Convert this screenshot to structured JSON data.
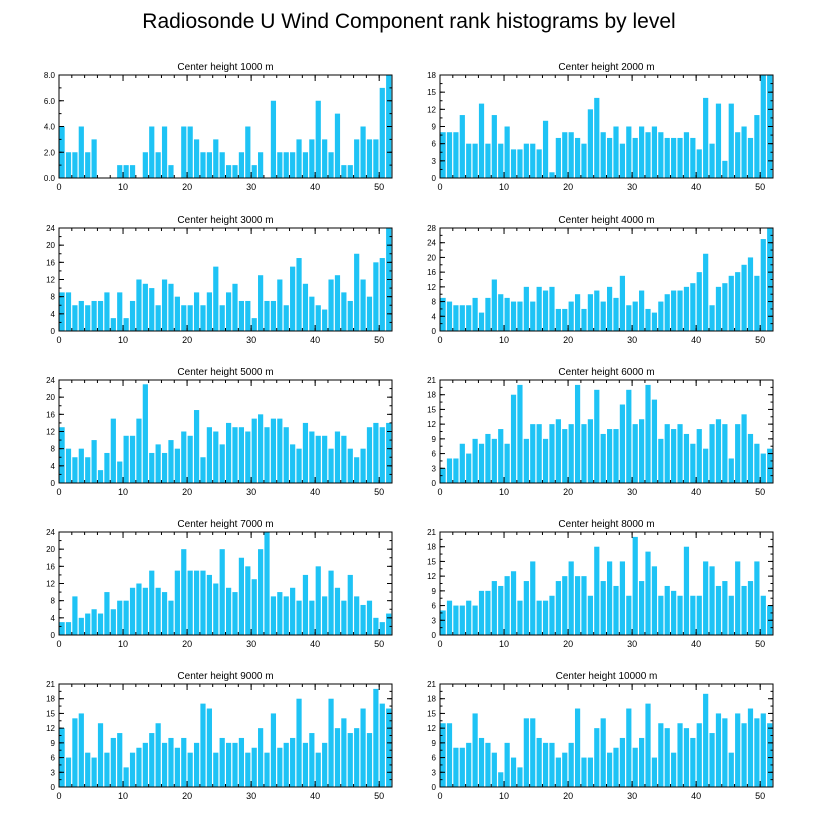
{
  "title": "Radiosonde U Wind Component rank histograms by level",
  "bar_color": "#1ec3f5",
  "chart_data": [
    {
      "type": "bar",
      "title": "Center height 1000 m",
      "ylim": [
        0,
        8
      ],
      "yticks": [
        0.0,
        2.0,
        4.0,
        6.0,
        8.0
      ],
      "yticks_labels": [
        "0.0",
        "2.0",
        "4.0",
        "6.0",
        "8.0"
      ],
      "xticks": [
        0,
        10,
        20,
        30,
        40,
        50
      ],
      "values": [
        4,
        2,
        2,
        4,
        2,
        3,
        0,
        0,
        0,
        1,
        1,
        1,
        0,
        2,
        4,
        2,
        4,
        1,
        0,
        4,
        4,
        3,
        2,
        2,
        3,
        2,
        1,
        1,
        2,
        4,
        1,
        2,
        0,
        6,
        2,
        2,
        2,
        3,
        2,
        3,
        6,
        3,
        2,
        5,
        1,
        1,
        3,
        4,
        3,
        3,
        7,
        8
      ]
    },
    {
      "type": "bar",
      "title": "Center height 2000 m",
      "ylim": [
        0,
        18
      ],
      "yticks": [
        0,
        3,
        6,
        9,
        12,
        15,
        18
      ],
      "xticks": [
        0,
        10,
        20,
        30,
        40,
        50
      ],
      "values": [
        8,
        8,
        8,
        11,
        6,
        6,
        13,
        6,
        11,
        6,
        9,
        5,
        5,
        6,
        6,
        5,
        10,
        1,
        7,
        8,
        8,
        7,
        6,
        12,
        14,
        8,
        7,
        9,
        6,
        9,
        7,
        9,
        8,
        9,
        8,
        7,
        7,
        7,
        8,
        7,
        5,
        14,
        6,
        13,
        3,
        13,
        8,
        9,
        7,
        11,
        18,
        18
      ]
    },
    {
      "type": "bar",
      "title": "Center height 3000 m",
      "ylim": [
        0,
        24
      ],
      "yticks": [
        0,
        4,
        8,
        12,
        16,
        20,
        24
      ],
      "xticks": [
        0,
        10,
        20,
        30,
        40,
        50
      ],
      "values": [
        9,
        9,
        6,
        7,
        6,
        7,
        7,
        9,
        3,
        9,
        3,
        7,
        12,
        11,
        10,
        6,
        12,
        11,
        8,
        6,
        6,
        9,
        6,
        9,
        15,
        6,
        9,
        11,
        7,
        7,
        3,
        13,
        7,
        7,
        12,
        6,
        15,
        17,
        11,
        8,
        6,
        5,
        12,
        13,
        9,
        7,
        18,
        12,
        8,
        16,
        17,
        24
      ]
    },
    {
      "type": "bar",
      "title": "Center height 4000 m",
      "ylim": [
        0,
        28
      ],
      "yticks": [
        0,
        4,
        8,
        12,
        16,
        20,
        24,
        28
      ],
      "xticks": [
        0,
        10,
        20,
        30,
        40,
        50
      ],
      "values": [
        9,
        8,
        7,
        7,
        7,
        9,
        5,
        9,
        14,
        10,
        9,
        8,
        8,
        12,
        8,
        12,
        11,
        12,
        6,
        6,
        8,
        10,
        6,
        10,
        11,
        8,
        12,
        9,
        15,
        7,
        8,
        11,
        6,
        5,
        8,
        10,
        11,
        11,
        12,
        13,
        16,
        21,
        7,
        12,
        13,
        15,
        16,
        18,
        20,
        15,
        25,
        28
      ]
    },
    {
      "type": "bar",
      "title": "Center height 5000 m",
      "ylim": [
        0,
        24
      ],
      "yticks": [
        0,
        4,
        8,
        12,
        16,
        20,
        24
      ],
      "xticks": [
        0,
        10,
        20,
        30,
        40,
        50
      ],
      "values": [
        13,
        8,
        6,
        8,
        6,
        10,
        3,
        7,
        15,
        5,
        11,
        11,
        15,
        23,
        7,
        9,
        7,
        10,
        8,
        12,
        11,
        17,
        6,
        13,
        12,
        9,
        14,
        13,
        13,
        12,
        15,
        16,
        13,
        15,
        15,
        13,
        9,
        8,
        14,
        12,
        11,
        11,
        8,
        12,
        11,
        8,
        6,
        8,
        13,
        14,
        13,
        14
      ]
    },
    {
      "type": "bar",
      "title": "Center height 6000 m",
      "ylim": [
        0,
        21
      ],
      "yticks": [
        0,
        3,
        6,
        9,
        12,
        15,
        18,
        21
      ],
      "xticks": [
        0,
        10,
        20,
        30,
        40,
        50
      ],
      "values": [
        3,
        5,
        5,
        8,
        6,
        9,
        8,
        10,
        9,
        11,
        8,
        18,
        20,
        9,
        12,
        12,
        9,
        12,
        13,
        11,
        12,
        20,
        12,
        13,
        19,
        10,
        11,
        11,
        16,
        19,
        12,
        13,
        20,
        17,
        9,
        12,
        11,
        12,
        10,
        8,
        11,
        7,
        12,
        13,
        12,
        5,
        12,
        14,
        10,
        8,
        6,
        7
      ]
    },
    {
      "type": "bar",
      "title": "Center height 7000 m",
      "ylim": [
        0,
        24
      ],
      "yticks": [
        0,
        4,
        8,
        12,
        16,
        20,
        24
      ],
      "xticks": [
        0,
        10,
        20,
        30,
        40,
        50
      ],
      "values": [
        3,
        3,
        9,
        4,
        5,
        6,
        5,
        10,
        6,
        8,
        8,
        11,
        12,
        11,
        15,
        11,
        10,
        8,
        15,
        20,
        15,
        15,
        15,
        14,
        12,
        20,
        11,
        10,
        18,
        16,
        13,
        20,
        24,
        9,
        10,
        9,
        11,
        8,
        14,
        8,
        16,
        9,
        15,
        11,
        8,
        14,
        9,
        7,
        8,
        4,
        3,
        5
      ]
    },
    {
      "type": "bar",
      "title": "Center height 8000 m",
      "ylim": [
        0,
        21
      ],
      "yticks": [
        0,
        3,
        6,
        9,
        12,
        15,
        18,
        21
      ],
      "xticks": [
        0,
        10,
        20,
        30,
        40,
        50
      ],
      "values": [
        5,
        7,
        6,
        6,
        7,
        6,
        9,
        9,
        11,
        10,
        12,
        13,
        7,
        11,
        15,
        7,
        7,
        8,
        11,
        12,
        15,
        12,
        12,
        8,
        18,
        11,
        15,
        10,
        15,
        8,
        20,
        11,
        17,
        14,
        8,
        10,
        9,
        8,
        18,
        8,
        8,
        15,
        14,
        10,
        11,
        8,
        15,
        10,
        11,
        15,
        8,
        6
      ]
    },
    {
      "type": "bar",
      "title": "Center height 9000 m",
      "ylim": [
        0,
        21
      ],
      "yticks": [
        0,
        3,
        6,
        9,
        12,
        15,
        18,
        21
      ],
      "xticks": [
        0,
        10,
        20,
        30,
        40,
        50
      ],
      "values": [
        12,
        6,
        14,
        15,
        7,
        6,
        13,
        7,
        10,
        11,
        4,
        7,
        8,
        9,
        11,
        13,
        9,
        10,
        8,
        10,
        7,
        9,
        17,
        16,
        7,
        10,
        9,
        9,
        10,
        7,
        8,
        12,
        7,
        15,
        8,
        9,
        10,
        18,
        9,
        11,
        7,
        9,
        18,
        12,
        14,
        11,
        12,
        16,
        11,
        20,
        17,
        16
      ]
    },
    {
      "type": "bar",
      "title": "Center height 10000 m",
      "ylim": [
        0,
        21
      ],
      "yticks": [
        0,
        3,
        6,
        9,
        12,
        15,
        18,
        21
      ],
      "xticks": [
        0,
        10,
        20,
        30,
        40,
        50
      ],
      "values": [
        13,
        13,
        8,
        8,
        9,
        15,
        10,
        9,
        7,
        3,
        9,
        6,
        4,
        14,
        14,
        10,
        9,
        9,
        6,
        7,
        9,
        16,
        6,
        6,
        12,
        14,
        7,
        8,
        10,
        16,
        8,
        10,
        17,
        6,
        13,
        12,
        7,
        13,
        12,
        10,
        13,
        19,
        11,
        15,
        14,
        7,
        15,
        13,
        16,
        14,
        15,
        13
      ]
    }
  ]
}
